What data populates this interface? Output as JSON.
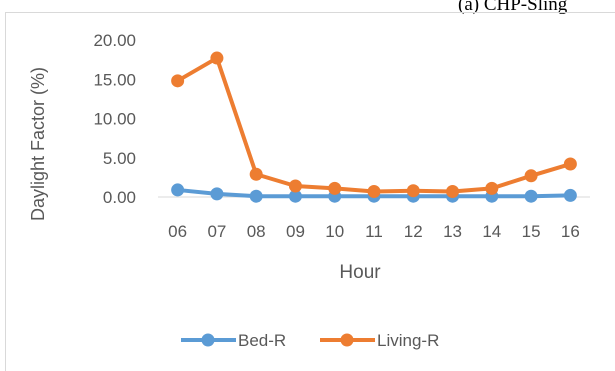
{
  "caption": "(a) CHP-Sling",
  "chart_data": {
    "type": "line",
    "title": "",
    "xlabel": "Hour",
    "ylabel": "Daylight Factor (%)",
    "categories": [
      "06",
      "07",
      "08",
      "09",
      "10",
      "11",
      "12",
      "13",
      "14",
      "15",
      "16"
    ],
    "ylim": [
      0,
      20
    ],
    "yticks": [
      "0.00",
      "5.00",
      "10.00",
      "15.00",
      "20.00"
    ],
    "grid": false,
    "legend_position": "bottom",
    "series": [
      {
        "name": "Bed-R",
        "color": "#5B9BD5",
        "values": [
          0.9,
          0.4,
          0.1,
          0.1,
          0.1,
          0.1,
          0.1,
          0.1,
          0.1,
          0.1,
          0.2
        ]
      },
      {
        "name": "Living-R",
        "color": "#ED7D31",
        "values": [
          14.8,
          17.7,
          2.9,
          1.4,
          1.1,
          0.7,
          0.8,
          0.7,
          1.1,
          2.7,
          4.2
        ]
      }
    ]
  }
}
